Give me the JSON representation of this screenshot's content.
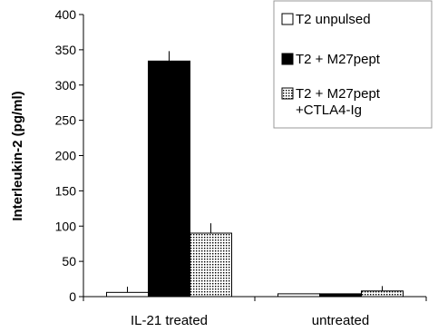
{
  "chart_data": {
    "type": "bar",
    "categories": [
      "IL-21 treated",
      "untreated"
    ],
    "series": [
      {
        "name": "T2 unpulsed",
        "values": [
          6,
          4
        ],
        "errors": [
          8,
          0
        ],
        "fill": "#ffffff"
      },
      {
        "name": "T2 + M27pept",
        "values": [
          334,
          4
        ],
        "errors": [
          14,
          0
        ],
        "fill": "#000000"
      },
      {
        "name": "T2 +  M27pept +CTLA4-Ig",
        "legend_lines": [
          "T2 +  M27pept",
          "+CTLA4-Ig"
        ],
        "values": [
          90,
          8
        ],
        "errors": [
          14,
          7
        ],
        "fill": "dots"
      }
    ],
    "ylabel": "Interleukin-2 (pg/ml)",
    "ylim": [
      0,
      400
    ],
    "yticks": [
      0,
      50,
      100,
      150,
      200,
      250,
      300,
      350,
      400
    ],
    "legend_position": "top-right",
    "grid": false
  }
}
